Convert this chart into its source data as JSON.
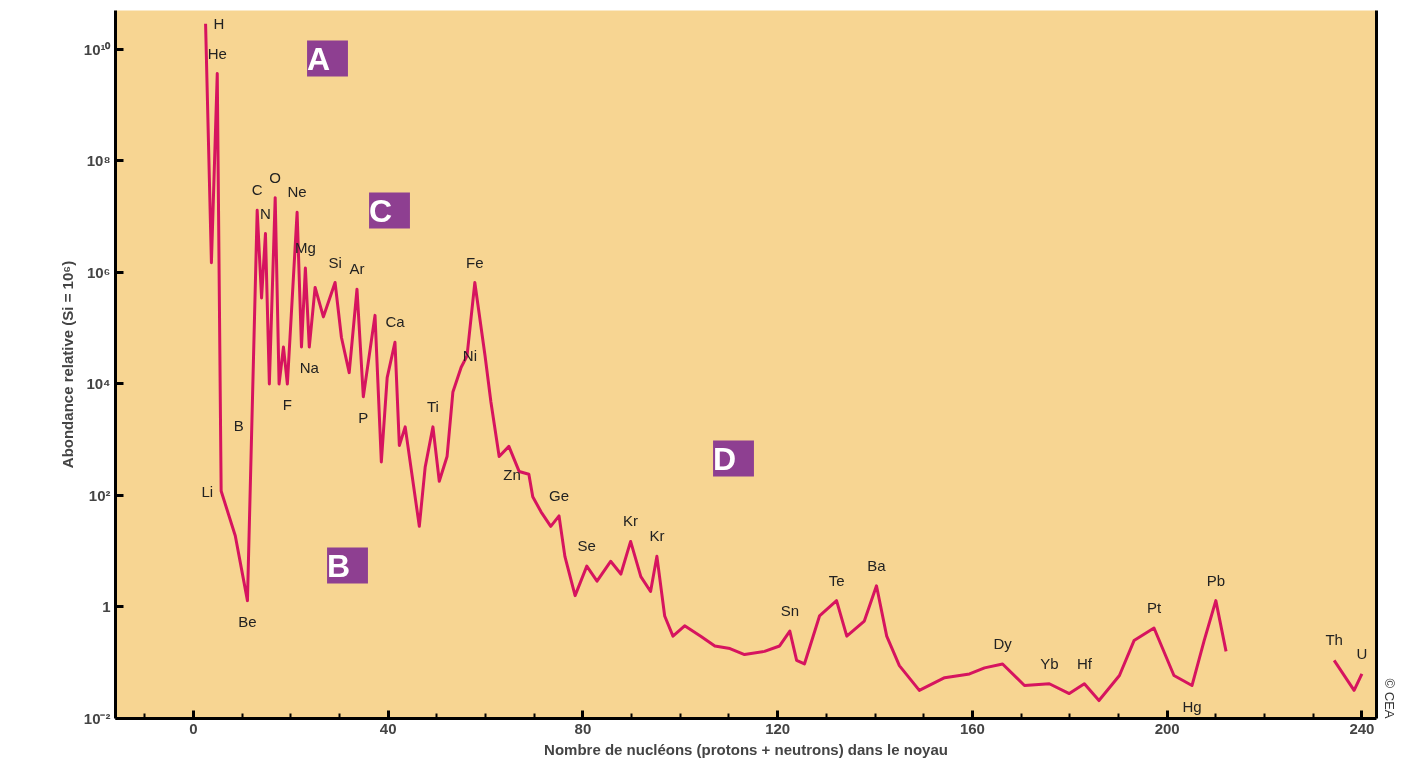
{
  "chart_data": {
    "type": "line",
    "xlabel": "Nombre de nucléons (protons + neutrons) dans le noyau",
    "ylabel": "Abondance relative (Si = 10⁶)",
    "log": "y",
    "grid": false,
    "marker": "none",
    "line_style": "solid",
    "xlim": [
      -16,
      243
    ],
    "xticks": [
      0,
      40,
      80,
      120,
      160,
      200,
      240
    ],
    "ylim": [
      0.01,
      50000000000.0
    ],
    "yticks": [
      {
        "value": 0.01,
        "label": "10⁻²"
      },
      1,
      {
        "value": 100,
        "label": "10²"
      },
      {
        "value": 10000,
        "label": "10⁴"
      },
      {
        "value": 1000000,
        "label": "10⁶"
      },
      {
        "value": 100000000,
        "label": "10⁸"
      },
      {
        "value": 10000000000,
        "label": "10¹⁰"
      }
    ],
    "series": [
      {
        "color": "#d6145f",
        "x": [
          2.5,
          3.7,
          4.9,
          5.7,
          8.6,
          11.1,
          13.1,
          14,
          14.8,
          15.6,
          16.8,
          17.6,
          18.5,
          19.3,
          21.3,
          22.2,
          23,
          23.8,
          25,
          26.7,
          29.1,
          30.4,
          32,
          33.6,
          34.9,
          37.3,
          38.6,
          39.8,
          41.4,
          42.3,
          43.5,
          46.4,
          47.6,
          49.2,
          50.5,
          52.1,
          53.3,
          55,
          56.2,
          57.8,
          59.9,
          61.1,
          62.8,
          64.8,
          66.9,
          68.9,
          69.7,
          71.4,
          73.4,
          75.1,
          76.3,
          78.4,
          80.8,
          82.9,
          85.7,
          87.8,
          89.8,
          91.9,
          93.9,
          95.2,
          96.8,
          98.5,
          100.9,
          104.2,
          107.1,
          110.2,
          113.2,
          117.3,
          120.4,
          122.5,
          123.9,
          125.5,
          128.6,
          132.1,
          134.2,
          137.8,
          140.3,
          142.4,
          145,
          149.1,
          154.3,
          159.4,
          162.5,
          166.2,
          170.7,
          175.8,
          179.9,
          183,
          186,
          190.2,
          193.2,
          197.3,
          201.4,
          205.1,
          207.6,
          210,
          212.1,
          223,
          234.3,
          238.4,
          240
        ],
        "values": [
          29000000000.0,
          1500000.0,
          3700000000.0,
          120,
          19,
          1.3,
          13000000.0,
          350000.0,
          5000000.0,
          10000.0,
          22000000.0,
          10000.0,
          46000.0,
          10000.0,
          12000000.0,
          46000.0,
          1200000.0,
          46000.0,
          540000.0,
          160000.0,
          660000.0,
          69000.0,
          16000.0,
          500000.0,
          5900.0,
          170000.0,
          400,
          13000.0,
          56000.0,
          790,
          1700.0,
          28,
          320,
          1700.0,
          180,
          500,
          7200.0,
          20000.0,
          32000.0,
          660000.0,
          32000.0,
          4800.0,
          500,
          760,
          270,
          240,
          95,
          51,
          28,
          43,
          8.1,
          1.6,
          5.4,
          2.9,
          6.6,
          3.9,
          15,
          3.5,
          1.9,
          8.1,
          0.69,
          0.3,
          0.46,
          0.3,
          0.2,
          0.18,
          0.14,
          0.16,
          0.2,
          0.37,
          0.11,
          0.095,
          0.69,
          1.3,
          0.3,
          0.56,
          2.4,
          0.3,
          0.089,
          0.032,
          0.054,
          0.063,
          0.081,
          0.095,
          0.039,
          0.042,
          0.028,
          0.042,
          0.021,
          0.059,
          0.25,
          0.42,
          0.059,
          0.039,
          0.25,
          1.3,
          0.16,
          null,
          0.11,
          0.032,
          0.063
        ]
      }
    ],
    "annotations": [
      {
        "text": "H",
        "x": 2.5,
        "y": 29000000000.0
      },
      {
        "text": "He",
        "x": 4.9,
        "y": 3700000000.0
      },
      {
        "text": "Li",
        "x": 5.7,
        "y": 120
      },
      {
        "text": "B",
        "x": 12,
        "y": 1800
      },
      {
        "text": "Be",
        "x": 11.1,
        "y": 1.3
      },
      {
        "text": "C",
        "x": 13.1,
        "y": 13000000.0
      },
      {
        "text": "O",
        "x": 16.8,
        "y": 22000000.0
      },
      {
        "text": "Ne",
        "x": 21.3,
        "y": 12000000.0
      },
      {
        "text": "N",
        "x": 14.8,
        "y": 5000000.0
      },
      {
        "text": "Mg",
        "x": 23,
        "y": 1200000.0
      },
      {
        "text": "Si",
        "x": 29.1,
        "y": 660000.0
      },
      {
        "text": "Na",
        "x": 23.8,
        "y": 46000.0
      },
      {
        "text": "F",
        "x": 19.3,
        "y": 10000.0
      },
      {
        "text": "Ar",
        "x": 33.6,
        "y": 500000.0
      },
      {
        "text": "Ca",
        "x": 41.4,
        "y": 56000.0
      },
      {
        "text": "P",
        "x": 34.9,
        "y": 5900.0
      },
      {
        "text": "Ti",
        "x": 49.2,
        "y": 1700.0
      },
      {
        "text": "Fe",
        "x": 57.8,
        "y": 660000.0
      },
      {
        "text": "Ni",
        "x": 59.9,
        "y": 32000.0
      },
      {
        "text": "Zn",
        "x": 68.9,
        "y": 240
      },
      {
        "text": "Ge",
        "x": 75.1,
        "y": 43
      },
      {
        "text": "Se",
        "x": 80.8,
        "y": 5.4
      },
      {
        "text": "Kr",
        "x": 89.8,
        "y": 15
      },
      {
        "text": "Kr",
        "x": 95.2,
        "y": 8.1
      },
      {
        "text": "Sn",
        "x": 122.5,
        "y": 0.37
      },
      {
        "text": "Te",
        "x": 132.1,
        "y": 1.3
      },
      {
        "text": "Ba",
        "x": 140.3,
        "y": 2.4
      },
      {
        "text": "Dy",
        "x": 166.2,
        "y": 0.095
      },
      {
        "text": "Yb",
        "x": 175.8,
        "y": 0.042
      },
      {
        "text": "Hf",
        "x": 183,
        "y": 0.042
      },
      {
        "text": "Pt",
        "x": 197.3,
        "y": 0.42
      },
      {
        "text": "Hg",
        "x": 205.1,
        "y": 0.039
      },
      {
        "text": "Pb",
        "x": 210,
        "y": 1.3
      },
      {
        "text": "Th",
        "x": 234.3,
        "y": 0.11
      },
      {
        "text": "U",
        "x": 240,
        "y": 0.063
      },
      "A",
      "C",
      "D",
      "B",
      "© CEA"
    ]
  }
}
